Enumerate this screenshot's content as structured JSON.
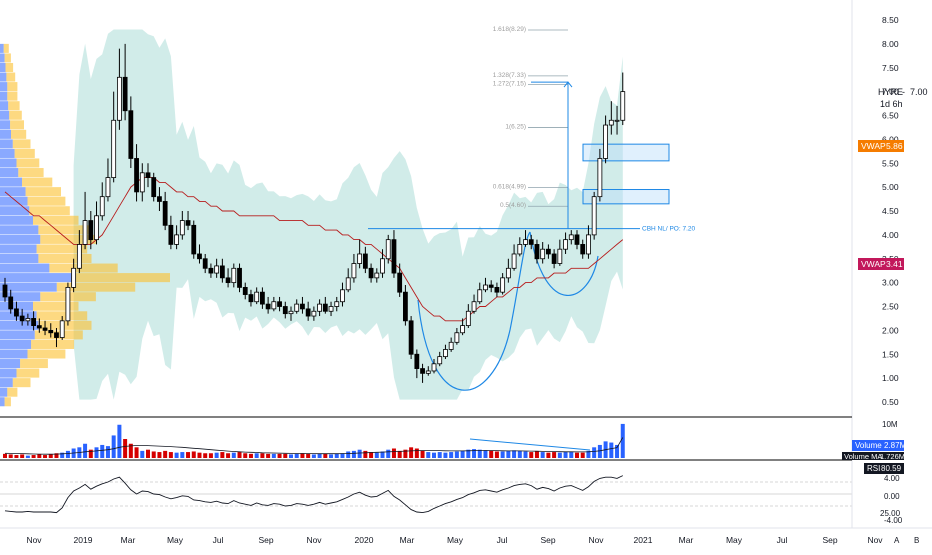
{
  "symbol": "HYRE",
  "timeframe": "1d 6h",
  "colors": {
    "up": "#ffffff",
    "down": "#000000",
    "candle_outline": "#000000",
    "bb_fill": "#b2dfdb",
    "ma": "#b71c1c",
    "vol_up": "#2962ff",
    "vol_down": "#d50000",
    "vp_blue": "#2962ff",
    "vp_yellow": "#fbc02d",
    "vwap_orange": "#f57c00",
    "vwap_red": "#c2185b",
    "cup": "#1e88e5",
    "fib": "#90a4ae"
  },
  "price_axis": {
    "ticks": [
      "8.50",
      "8.00",
      "7.50",
      "7.00",
      "6.50",
      "6.00",
      "5.50",
      "5.00",
      "4.50",
      "4.00",
      "3.50",
      "3.00",
      "2.50",
      "2.00",
      "1.50",
      "1.00",
      "0.50"
    ]
  },
  "time_axis": {
    "ticks": [
      "Nov",
      "2019",
      "Mar",
      "May",
      "Jul",
      "Sep",
      "Nov",
      "2020",
      "Mar",
      "May",
      "Jul",
      "Sep",
      "Nov",
      "2021",
      "Mar",
      "May",
      "Jul",
      "Sep",
      "Nov"
    ]
  },
  "axis_buttons": {
    "auto": "A",
    "log": "B"
  },
  "labels": {
    "symbol_price": "7.00",
    "vwap_upper": "VWAP",
    "vwap_upper_value": "5.86",
    "vwap_lower": "VWAP",
    "vwap_lower_value": "3.41",
    "breakout_note": "CBH NL/ PO: 7.20"
  },
  "fib_labels": [
    "1.618(8.29)",
    "1.328(7.33)",
    "1.272(7.15)",
    "1(6.25)",
    "0.618(4.99)",
    "0.5(4.60)"
  ],
  "volume_panel": {
    "axis_tick": "10M",
    "volume_label": "Volume",
    "volume_value": "2.87M",
    "ma_label": "Volume MA",
    "ma_value": "1.726M"
  },
  "rsi_panel": {
    "label": "RSI",
    "value": "80.59",
    "axis_ticks": [
      "4.00",
      "0.00",
      "25.00",
      "-4.00"
    ]
  },
  "chart_data": {
    "type": "candlestick",
    "interval": "weekly",
    "x": [
      "2018-10-22",
      "2018-10-29",
      "2018-11-05",
      "2018-11-12",
      "2018-11-19",
      "2018-11-26",
      "2018-12-03",
      "2018-12-10",
      "2018-12-17",
      "2018-12-24",
      "2018-12-31",
      "2019-01-07",
      "2019-01-14",
      "2019-01-21",
      "2019-01-28",
      "2019-02-04",
      "2019-02-11",
      "2019-02-18",
      "2019-02-25",
      "2019-03-04",
      "2019-03-11",
      "2019-03-18",
      "2019-03-25",
      "2019-04-01",
      "2019-04-08",
      "2019-04-15",
      "2019-04-22",
      "2019-04-29",
      "2019-05-06",
      "2019-05-13",
      "2019-05-20",
      "2019-05-27",
      "2019-06-03",
      "2019-06-10",
      "2019-06-17",
      "2019-06-24",
      "2019-07-01",
      "2019-07-08",
      "2019-07-15",
      "2019-07-22",
      "2019-07-29",
      "2019-08-05",
      "2019-08-12",
      "2019-08-19",
      "2019-08-26",
      "2019-09-02",
      "2019-09-09",
      "2019-09-16",
      "2019-09-23",
      "2019-09-30",
      "2019-10-07",
      "2019-10-14",
      "2019-10-21",
      "2019-10-28",
      "2019-11-04",
      "2019-11-11",
      "2019-11-18",
      "2019-11-25",
      "2019-12-02",
      "2019-12-09",
      "2019-12-16",
      "2019-12-23",
      "2019-12-30",
      "2020-01-06",
      "2020-01-13",
      "2020-01-20",
      "2020-01-27",
      "2020-02-03",
      "2020-02-10",
      "2020-02-17",
      "2020-02-24",
      "2020-03-02",
      "2020-03-09",
      "2020-03-16",
      "2020-03-23",
      "2020-03-30",
      "2020-04-06",
      "2020-04-13",
      "2020-04-20",
      "2020-04-27",
      "2020-05-04",
      "2020-05-11",
      "2020-05-18",
      "2020-05-25",
      "2020-06-01",
      "2020-06-08",
      "2020-06-15",
      "2020-06-22",
      "2020-06-29",
      "2020-07-06",
      "2020-07-13",
      "2020-07-20",
      "2020-07-27",
      "2020-08-03",
      "2020-08-10",
      "2020-08-17",
      "2020-08-24",
      "2020-08-31",
      "2020-09-07",
      "2020-09-14",
      "2020-09-21",
      "2020-09-28",
      "2020-10-05",
      "2020-10-12",
      "2020-10-19",
      "2020-10-26",
      "2020-11-02",
      "2020-11-09",
      "2020-11-16"
    ],
    "open": [
      2.95,
      2.7,
      2.45,
      2.3,
      2.2,
      2.25,
      2.1,
      2.05,
      2.0,
      1.95,
      1.85,
      2.2,
      2.9,
      3.3,
      3.8,
      4.3,
      3.9,
      4.4,
      4.8,
      5.2,
      6.4,
      7.3,
      6.6,
      5.6,
      4.9,
      5.3,
      5.2,
      4.8,
      4.7,
      4.2,
      3.8,
      4.0,
      4.3,
      4.2,
      3.6,
      3.5,
      3.3,
      3.2,
      3.35,
      3.1,
      3.0,
      3.3,
      2.9,
      2.75,
      2.6,
      2.8,
      2.55,
      2.45,
      2.6,
      2.5,
      2.35,
      2.4,
      2.55,
      2.45,
      2.3,
      2.4,
      2.55,
      2.4,
      2.5,
      2.6,
      2.85,
      3.1,
      3.4,
      3.6,
      3.3,
      3.1,
      3.2,
      3.5,
      3.9,
      3.2,
      2.8,
      2.2,
      1.5,
      1.2,
      1.1,
      1.15,
      1.3,
      1.45,
      1.6,
      1.75,
      1.95,
      2.1,
      2.4,
      2.6,
      2.85,
      2.95,
      2.9,
      2.8,
      3.1,
      3.3,
      3.6,
      3.8,
      3.9,
      3.8,
      3.5,
      3.7,
      3.6,
      3.4,
      3.7,
      3.9,
      4.0,
      3.8,
      3.6,
      4.0,
      4.8,
      5.6,
      6.3,
      6.4,
      6.4
    ],
    "close": [
      2.7,
      2.45,
      2.3,
      2.2,
      2.25,
      2.1,
      2.05,
      2.0,
      1.95,
      1.85,
      2.2,
      2.9,
      3.3,
      3.8,
      4.3,
      3.9,
      4.4,
      4.8,
      5.2,
      6.4,
      7.3,
      6.6,
      5.6,
      4.9,
      5.3,
      5.2,
      4.8,
      4.7,
      4.2,
      3.8,
      4.0,
      4.3,
      4.2,
      3.6,
      3.5,
      3.3,
      3.2,
      3.35,
      3.1,
      3.0,
      3.3,
      2.9,
      2.75,
      2.6,
      2.8,
      2.55,
      2.45,
      2.6,
      2.5,
      2.35,
      2.4,
      2.55,
      2.45,
      2.3,
      2.4,
      2.55,
      2.4,
      2.5,
      2.6,
      2.85,
      3.1,
      3.4,
      3.6,
      3.3,
      3.1,
      3.2,
      3.5,
      3.9,
      3.2,
      2.8,
      2.2,
      1.5,
      1.2,
      1.1,
      1.15,
      1.3,
      1.45,
      1.6,
      1.75,
      1.95,
      2.1,
      2.4,
      2.6,
      2.85,
      2.95,
      2.9,
      2.8,
      3.1,
      3.3,
      3.6,
      3.8,
      3.9,
      3.8,
      3.5,
      3.7,
      3.6,
      3.4,
      3.7,
      3.9,
      4.0,
      3.8,
      3.6,
      4.0,
      4.8,
      5.6,
      6.3,
      6.4,
      6.4,
      7.0
    ],
    "high": [
      3.1,
      2.85,
      2.6,
      2.45,
      2.35,
      2.4,
      2.25,
      2.2,
      2.15,
      2.05,
      2.3,
      3.0,
      3.5,
      4.1,
      4.9,
      4.5,
      4.7,
      5.1,
      5.6,
      7.0,
      7.9,
      8.0,
      6.9,
      5.9,
      5.5,
      5.5,
      5.3,
      5.0,
      4.9,
      4.4,
      4.2,
      4.5,
      4.5,
      4.3,
      3.8,
      3.6,
      3.4,
      3.5,
      3.5,
      3.3,
      3.4,
      3.4,
      3.0,
      2.85,
      2.9,
      2.9,
      2.7,
      2.7,
      2.7,
      2.6,
      2.5,
      2.65,
      2.7,
      2.6,
      2.5,
      2.65,
      2.7,
      2.6,
      2.7,
      3.0,
      3.3,
      3.6,
      3.9,
      3.75,
      3.4,
      3.3,
      3.7,
      4.0,
      4.1,
      3.4,
      2.95,
      2.3,
      1.6,
      1.3,
      1.25,
      1.4,
      1.55,
      1.7,
      1.85,
      2.05,
      2.25,
      2.55,
      2.75,
      3.0,
      3.1,
      3.05,
      3.0,
      3.2,
      3.5,
      3.8,
      3.95,
      4.1,
      4.0,
      3.9,
      3.85,
      3.8,
      3.7,
      3.9,
      4.05,
      4.1,
      4.1,
      3.9,
      4.2,
      4.9,
      5.8,
      6.5,
      6.8,
      6.7,
      7.4
    ],
    "low": [
      2.6,
      2.35,
      2.2,
      2.1,
      2.1,
      2.0,
      1.95,
      1.9,
      1.85,
      1.65,
      1.8,
      2.1,
      2.8,
      3.2,
      3.7,
      3.7,
      3.8,
      4.3,
      4.7,
      5.1,
      6.2,
      6.4,
      5.4,
      4.7,
      4.7,
      5.0,
      4.7,
      4.5,
      4.1,
      3.7,
      3.7,
      3.9,
      4.1,
      3.5,
      3.4,
      3.2,
      3.1,
      3.1,
      3.0,
      2.9,
      2.9,
      2.8,
      2.65,
      2.5,
      2.55,
      2.45,
      2.35,
      2.4,
      2.4,
      2.25,
      2.2,
      2.35,
      2.35,
      2.2,
      2.2,
      2.3,
      2.35,
      2.3,
      2.4,
      2.5,
      2.8,
      3.0,
      3.3,
      3.2,
      3.0,
      3.0,
      3.1,
      3.4,
      3.1,
      2.7,
      2.1,
      1.4,
      1.0,
      0.9,
      1.05,
      1.1,
      1.25,
      1.4,
      1.55,
      1.7,
      1.9,
      2.05,
      2.35,
      2.55,
      2.8,
      2.8,
      2.7,
      2.75,
      3.0,
      3.25,
      3.55,
      3.75,
      3.7,
      3.4,
      3.4,
      3.5,
      3.3,
      3.35,
      3.6,
      3.8,
      3.7,
      3.5,
      3.5,
      3.9,
      4.7,
      5.5,
      6.1,
      6.1,
      6.3
    ],
    "volume": [
      0.35,
      0.3,
      0.25,
      0.3,
      0.2,
      0.25,
      0.3,
      0.25,
      0.3,
      0.4,
      0.45,
      0.6,
      0.8,
      0.9,
      1.2,
      0.7,
      0.9,
      1.1,
      1.0,
      1.9,
      2.8,
      1.6,
      1.2,
      0.9,
      0.6,
      0.7,
      0.55,
      0.5,
      0.6,
      0.5,
      0.45,
      0.5,
      0.5,
      0.55,
      0.45,
      0.4,
      0.4,
      0.45,
      0.5,
      0.4,
      0.45,
      0.5,
      0.4,
      0.35,
      0.4,
      0.4,
      0.35,
      0.35,
      0.35,
      0.35,
      0.3,
      0.35,
      0.4,
      0.35,
      0.3,
      0.35,
      0.35,
      0.3,
      0.35,
      0.4,
      0.55,
      0.6,
      0.7,
      0.6,
      0.5,
      0.45,
      0.55,
      0.7,
      0.8,
      0.6,
      0.7,
      0.9,
      0.8,
      0.6,
      0.5,
      0.45,
      0.5,
      0.45,
      0.5,
      0.55,
      0.6,
      0.7,
      0.75,
      0.7,
      0.65,
      0.6,
      0.55,
      0.55,
      0.6,
      0.65,
      0.6,
      0.55,
      0.5,
      0.55,
      0.5,
      0.45,
      0.5,
      0.45,
      0.5,
      0.5,
      0.45,
      0.45,
      0.6,
      0.9,
      1.1,
      1.4,
      1.3,
      1.1,
      2.87
    ],
    "volume_ma": [
      0.4,
      0.39,
      0.38,
      0.37,
      0.35,
      0.34,
      0.33,
      0.32,
      0.32,
      0.33,
      0.35,
      0.38,
      0.42,
      0.46,
      0.52,
      0.56,
      0.6,
      0.65,
      0.7,
      0.78,
      0.9,
      0.98,
      1.02,
      1.05,
      1.05,
      1.04,
      1.02,
      1.0,
      0.98,
      0.96,
      0.93,
      0.9,
      0.86,
      0.82,
      0.78,
      0.74,
      0.7,
      0.66,
      0.62,
      0.58,
      0.55,
      0.52,
      0.5,
      0.48,
      0.46,
      0.44,
      0.43,
      0.42,
      0.41,
      0.4,
      0.39,
      0.38,
      0.38,
      0.37,
      0.37,
      0.36,
      0.36,
      0.36,
      0.36,
      0.37,
      0.38,
      0.4,
      0.42,
      0.44,
      0.46,
      0.48,
      0.5,
      0.52,
      0.54,
      0.56,
      0.58,
      0.6,
      0.62,
      0.63,
      0.63,
      0.63,
      0.62,
      0.61,
      0.6,
      0.6,
      0.6,
      0.61,
      0.62,
      0.63,
      0.63,
      0.63,
      0.62,
      0.61,
      0.6,
      0.6,
      0.6,
      0.59,
      0.58,
      0.57,
      0.56,
      0.55,
      0.54,
      0.53,
      0.52,
      0.52,
      0.51,
      0.51,
      0.52,
      0.56,
      0.61,
      0.7,
      0.79,
      0.88,
      1.726
    ],
    "rsi": [
      22,
      21,
      20,
      20,
      21,
      20,
      20,
      20,
      20,
      19,
      27,
      44,
      55,
      60,
      66,
      58,
      63,
      67,
      70,
      75,
      78,
      68,
      57,
      50,
      55,
      54,
      50,
      49,
      45,
      42,
      44,
      47,
      46,
      40,
      39,
      37,
      36,
      38,
      35,
      34,
      39,
      35,
      33,
      31,
      35,
      32,
      31,
      34,
      33,
      30,
      31,
      34,
      33,
      31,
      33,
      36,
      33,
      35,
      37,
      41,
      45,
      50,
      53,
      48,
      45,
      46,
      51,
      56,
      46,
      40,
      32,
      24,
      20,
      19,
      21,
      26,
      30,
      34,
      37,
      41,
      44,
      49,
      52,
      56,
      57,
      55,
      53,
      57,
      60,
      64,
      66,
      67,
      64,
      58,
      61,
      59,
      55,
      60,
      63,
      64,
      60,
      56,
      62,
      71,
      76,
      78,
      78,
      76,
      80.59
    ],
    "ma": {
      "name": "MA",
      "values": [
        4.9,
        4.8,
        4.7,
        4.6,
        4.5,
        4.4,
        4.4,
        4.3,
        4.2,
        4.1,
        4.0,
        3.9,
        3.8,
        3.8,
        3.8,
        3.8,
        3.9,
        4.0,
        4.2,
        4.4,
        4.6,
        4.8,
        5.0,
        5.1,
        5.2,
        5.2,
        5.2,
        5.1,
        5.1,
        5.0,
        4.9,
        4.9,
        4.8,
        4.8,
        4.7,
        4.7,
        4.6,
        4.6,
        4.5,
        4.5,
        4.5,
        4.4,
        4.4,
        4.4,
        4.4,
        4.4,
        4.4,
        4.4,
        4.3,
        4.3,
        4.3,
        4.3,
        4.3,
        4.2,
        4.2,
        4.2,
        4.1,
        4.1,
        4.1,
        4.0,
        4.0,
        3.9,
        3.9,
        3.8,
        3.8,
        3.7,
        3.6,
        3.5,
        3.4,
        3.3,
        3.1,
        2.9,
        2.7,
        2.5,
        2.4,
        2.3,
        2.3,
        2.2,
        2.2,
        2.2,
        2.2,
        2.3,
        2.4,
        2.5,
        2.5,
        2.6,
        2.7,
        2.7,
        2.8,
        2.9,
        2.9,
        3.0,
        3.0,
        3.1,
        3.1,
        3.1,
        3.2,
        3.2,
        3.2,
        3.3,
        3.3,
        3.3,
        3.3,
        3.4,
        3.5,
        3.6,
        3.7,
        3.8,
        3.9
      ]
    },
    "volume_profile_levels": [
      0.5,
      0.7,
      0.9,
      1.1,
      1.3,
      1.5,
      1.7,
      1.9,
      2.1,
      2.3,
      2.5,
      2.7,
      2.9,
      3.1,
      3.3,
      3.5,
      3.7,
      3.9,
      4.1,
      4.3,
      4.5,
      4.7,
      4.9,
      5.1,
      5.3,
      5.5,
      5.7,
      5.9,
      6.1,
      6.3,
      6.5,
      6.7,
      6.9,
      7.1,
      7.3,
      7.5,
      7.7,
      7.9
    ],
    "volume_profile_values": [
      5,
      8,
      14,
      18,
      22,
      30,
      34,
      38,
      42,
      40,
      36,
      44,
      62,
      78,
      54,
      42,
      40,
      44,
      42,
      36,
      32,
      30,
      28,
      24,
      20,
      18,
      16,
      14,
      12,
      11,
      10,
      9,
      8,
      8,
      7,
      6,
      5,
      4
    ],
    "fib_levels": [
      8.29,
      7.33,
      7.15,
      6.25,
      4.99,
      4.6
    ],
    "breakout_level": 4.13,
    "breakout_target": 7.2,
    "boxes": [
      {
        "from": 5.55,
        "to": 5.9
      },
      {
        "from": 4.65,
        "to": 4.95
      }
    ],
    "yrange": [
      0.3,
      8.7
    ]
  }
}
